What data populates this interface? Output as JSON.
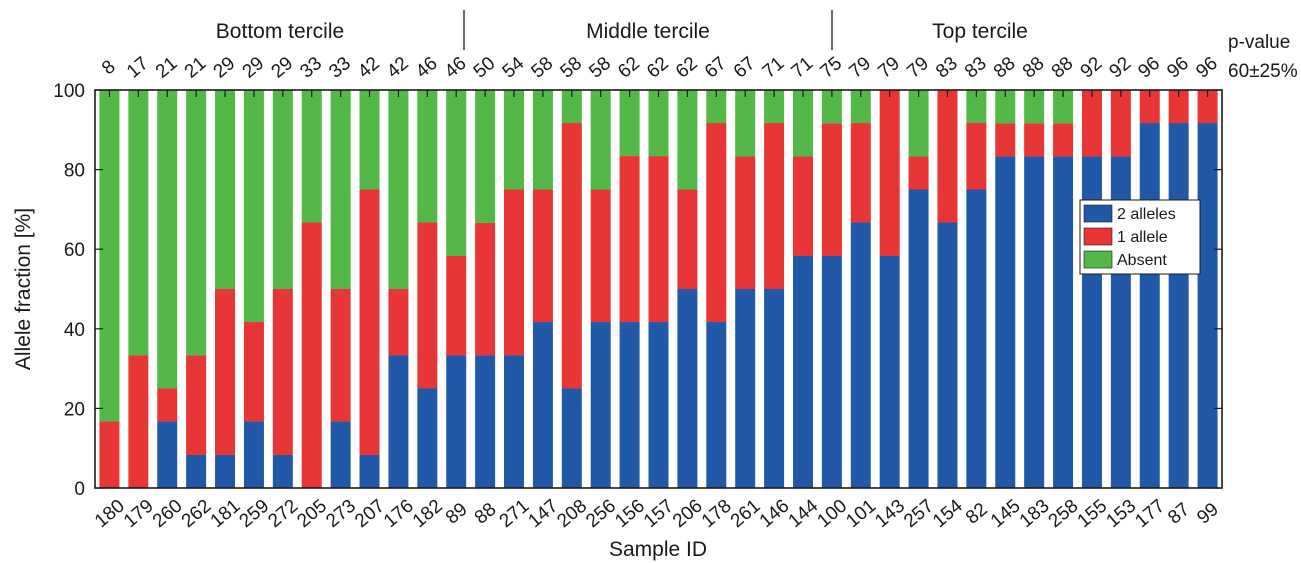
{
  "chart_data": {
    "type": "bar",
    "stacked": true,
    "xlabel": "Sample ID",
    "ylabel": "Allele fraction [%]",
    "ylim": [
      0,
      100
    ],
    "yticks": [
      0,
      20,
      40,
      60,
      80,
      100
    ],
    "grid": false,
    "legend_position": "right",
    "categories": [
      "180",
      "179",
      "260",
      "262",
      "181",
      "259",
      "272",
      "205",
      "273",
      "207",
      "176",
      "182",
      "89",
      "88",
      "271",
      "147",
      "208",
      "256",
      "156",
      "157",
      "206",
      "178",
      "261",
      "146",
      "144",
      "100",
      "101",
      "143",
      "257",
      "154",
      "82",
      "145",
      "183",
      "258",
      "155",
      "153",
      "177",
      "87",
      "99"
    ],
    "series": [
      {
        "name": "2 alleles",
        "color": "#2159a8",
        "values": [
          0,
          0,
          16.7,
          8.3,
          8.3,
          16.7,
          8.3,
          0,
          16.7,
          8.3,
          33.3,
          25,
          33.3,
          33.3,
          33.3,
          41.7,
          25,
          41.7,
          41.7,
          41.7,
          50,
          41.7,
          50,
          50,
          58.3,
          58.3,
          66.7,
          58.3,
          75,
          66.7,
          75,
          83.3,
          83.3,
          83.3,
          83.3,
          83.3,
          91.7,
          91.7,
          91.7
        ]
      },
      {
        "name": "1 allele",
        "color": "#e83535",
        "values": [
          16.7,
          33.3,
          8.3,
          25,
          41.7,
          25,
          41.7,
          66.7,
          33.3,
          66.7,
          16.7,
          41.7,
          25,
          33.3,
          41.7,
          33.3,
          66.7,
          33.3,
          41.7,
          41.7,
          25,
          50,
          33.3,
          41.7,
          25,
          33.3,
          25,
          41.7,
          8.3,
          33.3,
          16.7,
          8.3,
          8.3,
          8.3,
          16.7,
          16.7,
          8.3,
          8.3,
          8.3
        ]
      },
      {
        "name": "Absent",
        "color": "#53b848",
        "values": [
          83.3,
          66.7,
          75,
          66.7,
          50,
          58.3,
          50,
          33.3,
          50,
          25,
          50,
          33.3,
          41.7,
          33.3,
          25,
          25,
          8.3,
          25,
          16.7,
          16.7,
          25,
          8.3,
          16.7,
          8.3,
          16.7,
          8.3,
          8.3,
          0,
          16.7,
          0,
          8.3,
          8.3,
          8.3,
          8.3,
          0,
          0,
          0,
          0,
          0
        ]
      }
    ],
    "pvalues": [
      "8",
      "17",
      "21",
      "21",
      "29",
      "29",
      "29",
      "33",
      "33",
      "42",
      "42",
      "46",
      "46",
      "50",
      "54",
      "58",
      "58",
      "58",
      "62",
      "62",
      "62",
      "67",
      "67",
      "71",
      "71",
      "75",
      "79",
      "79",
      "79",
      "83",
      "83",
      "88",
      "88",
      "88",
      "92",
      "92",
      "96",
      "96",
      "96"
    ],
    "pvalue_label_line1": "p-value",
    "pvalue_label_line2": "60±25%",
    "groups": [
      {
        "label": "Bottom tercile",
        "start": 0,
        "end": 12
      },
      {
        "label": "Middle tercile",
        "start": 13,
        "end": 25
      },
      {
        "label": "Top tercile",
        "start": 26,
        "end": 38
      }
    ]
  }
}
